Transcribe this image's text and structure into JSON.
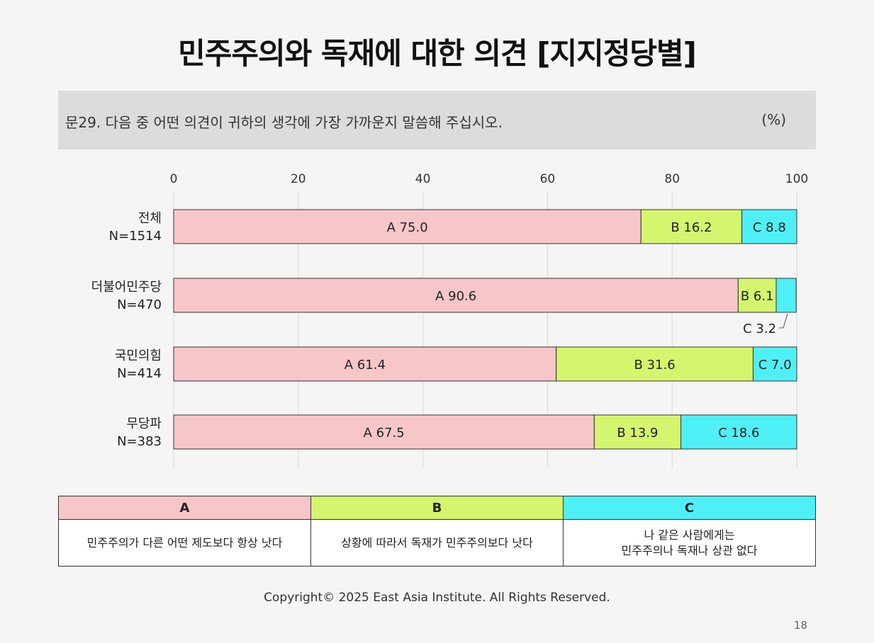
{
  "title": "민주주의와 독재에 대한 의견 [지지정당별]",
  "question": "문29. 다음 중 어떤 의견이 귀하의 생각에 가장 가까운지 말씀해 주십시오.",
  "unit": "(%)",
  "chart_data": {
    "type": "bar",
    "orientation": "horizontal",
    "stacked": true,
    "xlim": [
      0,
      100
    ],
    "x_ticks": [
      0,
      20,
      40,
      60,
      80,
      100
    ],
    "categories": [
      {
        "name": "전체",
        "n": "N=1514"
      },
      {
        "name": "더불어민주당",
        "n": "N=470"
      },
      {
        "name": "국민의힘",
        "n": "N=414"
      },
      {
        "name": "무당파",
        "n": "N=383"
      }
    ],
    "series": [
      {
        "name": "A",
        "color": "#f7c6c9",
        "values": [
          75.0,
          90.6,
          61.4,
          67.5
        ],
        "labels": [
          "A 75.0",
          "A 90.6",
          "A 61.4",
          "A 67.5"
        ]
      },
      {
        "name": "B",
        "color": "#d5f56e",
        "values": [
          16.2,
          6.1,
          31.6,
          13.9
        ],
        "labels": [
          "B 16.2",
          "B 6.1",
          "B 31.6",
          "B 13.9"
        ]
      },
      {
        "name": "C",
        "color": "#4ff0f5",
        "values": [
          8.8,
          3.2,
          7.0,
          18.6
        ],
        "labels": [
          "C 8.8",
          "C 3.2",
          "C 7.0",
          "C 18.6"
        ]
      }
    ]
  },
  "legend": {
    "headers": [
      "A",
      "B",
      "C"
    ],
    "descriptions": [
      "민주주의가 다른 어떤 제도보다 항상 낫다",
      "상황에 따라서 독재가 민주주의보다 낫다",
      "나 같은 사람에게는\n민주주의나 독재나 상관 없다"
    ],
    "colors": [
      "#f7c6c9",
      "#d5f56e",
      "#4ff0f5"
    ]
  },
  "copyright": "Copyright© 2025 East Asia Institute. All Rights Reserved.",
  "page_number": "18"
}
